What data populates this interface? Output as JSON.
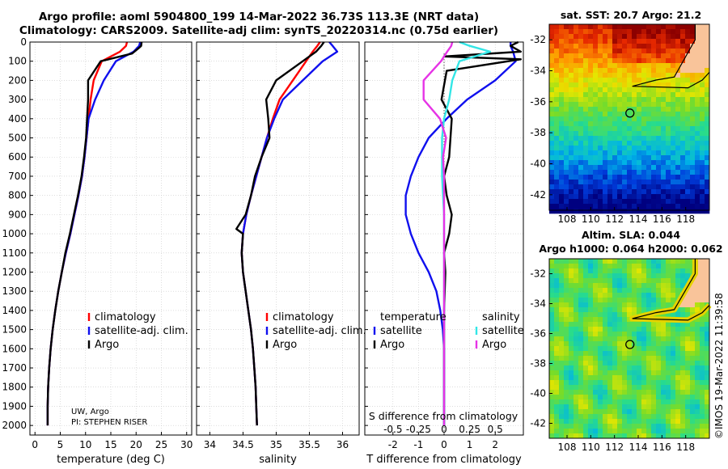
{
  "header": {
    "title_line1": "Argo profile: aoml 5904800_199 14-Mar-2022 36.73S 113.3E (NRT data)",
    "title_line2": "Climatology: CARS2009. Satellite-adj clim: synTS_20220314.nc (0.75d earlier)"
  },
  "colors": {
    "climatology": "#ff0000",
    "satellite": "#1010ee",
    "argo": "#000000",
    "sat_T": "#33e6e6",
    "argo_S": "#e633e6"
  },
  "depth_axis": {
    "ticks": [
      "0",
      "100",
      "200",
      "300",
      "400",
      "500",
      "600",
      "700",
      "800",
      "900",
      "1000",
      "1100",
      "1200",
      "1300",
      "1400",
      "1500",
      "1600",
      "1700",
      "1800",
      "1900",
      "2000"
    ],
    "ylim": [
      0,
      2050
    ]
  },
  "chart_data": [
    {
      "type": "line",
      "id": "temperature",
      "xlabel": "temperature (deg C)",
      "xlim": [
        -1,
        31
      ],
      "xticks": [
        "0",
        "5",
        "10",
        "15",
        "20",
        "25",
        "30"
      ],
      "legend": {
        "climatology": "climatology",
        "satellite": "satellite-adj. clim.",
        "argo": "Argo"
      },
      "note": [
        "UW, Argo",
        "PI: STEPHEN RISER"
      ],
      "series": [
        {
          "name": "climatology",
          "color": "#ff0000",
          "x": [
            18.2,
            18.0,
            16.8,
            13.2,
            11.6,
            11.0,
            10.6,
            10.2,
            9.8,
            9.3,
            8.6,
            7.8,
            7.0,
            6.1,
            5.3,
            4.6,
            4.0,
            3.5,
            3.1,
            2.8,
            2.6,
            2.5,
            2.5
          ],
          "depth": [
            0,
            20,
            50,
            100,
            200,
            300,
            400,
            500,
            600,
            700,
            800,
            900,
            1000,
            1100,
            1200,
            1300,
            1400,
            1500,
            1600,
            1700,
            1800,
            1900,
            2000
          ]
        },
        {
          "name": "satellite-adj. clim.",
          "color": "#1010ee",
          "x": [
            20.8,
            20.6,
            19.5,
            16.0,
            13.6,
            11.9,
            10.6,
            10.2,
            9.8,
            9.3,
            8.6,
            7.8,
            7.0,
            6.1,
            5.3,
            4.6,
            4.0,
            3.5,
            3.1,
            2.8,
            2.6,
            2.5,
            2.5
          ],
          "depth": [
            0,
            20,
            50,
            100,
            200,
            300,
            400,
            500,
            600,
            700,
            800,
            900,
            1000,
            1100,
            1200,
            1300,
            1400,
            1500,
            1600,
            1700,
            1800,
            1900,
            2000
          ]
        },
        {
          "name": "Argo",
          "color": "#000000",
          "x": [
            21.1,
            21.0,
            20.6,
            19.2,
            13.0,
            10.5,
            10.5,
            10.1,
            9.7,
            9.2,
            8.5,
            7.7,
            6.9,
            6.0,
            5.3,
            4.6,
            4.0,
            3.5,
            3.1,
            2.8,
            2.6,
            2.5,
            2.5
          ],
          "depth": [
            0,
            20,
            30,
            60,
            100,
            200,
            300,
            500,
            600,
            700,
            800,
            900,
            1000,
            1100,
            1200,
            1300,
            1400,
            1500,
            1600,
            1700,
            1800,
            1900,
            2000
          ]
        }
      ]
    },
    {
      "type": "line",
      "id": "salinity",
      "xlabel": "salinity",
      "xlim": [
        33.8,
        36.25
      ],
      "xticks": [
        "34",
        "34.5",
        "35",
        "35.5",
        "36"
      ],
      "legend": {
        "climatology": "climatology",
        "satellite": "satellite-adj. clim.",
        "argo": "Argo"
      },
      "series": [
        {
          "name": "climatology",
          "color": "#ff0000",
          "x": [
            35.66,
            35.62,
            35.55,
            35.45,
            35.25,
            35.05,
            34.95,
            34.86,
            34.78,
            34.7,
            34.62,
            34.55,
            34.5,
            34.48,
            34.5,
            34.54,
            34.58,
            34.62,
            34.65,
            34.67,
            34.69,
            34.7,
            34.71
          ],
          "depth": [
            0,
            20,
            50,
            100,
            200,
            300,
            400,
            500,
            600,
            700,
            800,
            900,
            1000,
            1100,
            1200,
            1300,
            1400,
            1500,
            1600,
            1700,
            1800,
            1900,
            2000
          ]
        },
        {
          "name": "satellite-adj. clim.",
          "color": "#1010ee",
          "x": [
            35.8,
            35.85,
            35.92,
            35.7,
            35.4,
            35.1,
            34.97,
            34.86,
            34.78,
            34.7,
            34.62,
            34.55,
            34.5,
            34.48,
            34.5,
            34.54,
            34.58,
            34.62,
            34.65,
            34.67,
            34.69,
            34.7,
            34.71
          ],
          "depth": [
            0,
            20,
            50,
            100,
            200,
            300,
            400,
            500,
            600,
            700,
            800,
            900,
            1000,
            1100,
            1200,
            1300,
            1400,
            1500,
            1600,
            1700,
            1800,
            1900,
            2000
          ]
        },
        {
          "name": "Argo",
          "color": "#000000",
          "x": [
            35.72,
            35.68,
            35.6,
            35.4,
            35.0,
            34.85,
            34.88,
            34.9,
            34.78,
            34.68,
            34.62,
            34.54,
            34.4,
            34.5,
            34.48,
            34.5,
            34.54,
            34.58,
            34.62,
            34.65,
            34.67,
            34.69,
            34.7,
            34.71
          ],
          "depth": [
            0,
            20,
            50,
            100,
            200,
            300,
            400,
            500,
            600,
            700,
            800,
            900,
            975,
            1000,
            1100,
            1200,
            1300,
            1400,
            1500,
            1600,
            1700,
            1800,
            1900,
            2000
          ]
        }
      ]
    },
    {
      "type": "line",
      "id": "difference",
      "xlabel": "T difference from climatology",
      "xlim": [
        -3.1,
        3.1
      ],
      "xticks": [
        "-2",
        "-1",
        "0",
        "1",
        "2"
      ],
      "top_label": "S difference from climatology",
      "top_ticks": [
        "-0.5",
        "-0.25",
        "0",
        "0.25",
        "0.5"
      ],
      "legend": {
        "temperature": "temperature",
        "salinity": "salinity",
        "sat_T": "satellite",
        "argo_T": "Argo",
        "sat_S": "satellite",
        "argo_S": "Argo"
      },
      "series": [
        {
          "name": "satellite T",
          "color": "#1010ee",
          "x": [
            2.6,
            2.6,
            2.7,
            2.8,
            2.0,
            0.9,
            0.1,
            -0.6,
            -1.0,
            -1.3,
            -1.5,
            -1.5,
            -1.3,
            -1.0,
            -0.6,
            -0.3,
            -0.15,
            -0.05,
            0.0,
            0.0,
            0.0,
            0.0,
            0.0
          ],
          "depth": [
            0,
            20,
            50,
            100,
            200,
            300,
            400,
            500,
            600,
            700,
            800,
            900,
            1000,
            1100,
            1200,
            1300,
            1400,
            1500,
            1600,
            1700,
            1800,
            1900,
            2000
          ]
        },
        {
          "name": "Argo T",
          "color": "#000000",
          "x": [
            2.9,
            2.6,
            3.0,
            0.0,
            3.0,
            0.1,
            -0.1,
            0.3,
            0.2,
            0.0,
            0.1,
            0.3,
            0.2,
            0.0,
            0.05,
            0.0,
            0.0,
            0.0,
            0.0,
            0.0
          ],
          "depth": [
            0,
            20,
            50,
            75,
            90,
            150,
            300,
            400,
            600,
            700,
            800,
            900,
            1000,
            1100,
            1200,
            1400,
            1600,
            1800,
            1900,
            2000
          ]
        },
        {
          "name": "satellite S",
          "color": "#33e6e6",
          "x": [
            0.15,
            0.25,
            0.45,
            0.15,
            0.08,
            0.05,
            0.0,
            -0.02,
            -0.02,
            -0.02,
            -0.01,
            0.0,
            0.0,
            0.0,
            0.0,
            0.0,
            0.0
          ],
          "depth": [
            0,
            20,
            50,
            100,
            200,
            300,
            400,
            500,
            600,
            700,
            800,
            900,
            1000,
            1200,
            1500,
            1800,
            2000
          ]
        },
        {
          "name": "Argo S",
          "color": "#e633e6",
          "x": [
            0.08,
            0.07,
            0.03,
            -0.03,
            -0.2,
            -0.2,
            -0.04,
            0.02,
            -0.01,
            0.0,
            0.0,
            0.0,
            0.0,
            0.0,
            0.0,
            0.0
          ],
          "depth": [
            0,
            20,
            50,
            100,
            200,
            300,
            400,
            500,
            600,
            700,
            800,
            900,
            1000,
            1300,
            1600,
            2000
          ]
        }
      ]
    }
  ],
  "maps": {
    "sst": {
      "title": "sat. SST: 20.7 Argo: 21.2",
      "yticks": [
        "-32",
        "-34",
        "-36",
        "-38",
        "-40",
        "-42"
      ],
      "xticks": [
        "108",
        "110",
        "112",
        "114",
        "116",
        "118"
      ],
      "argo_lon": 113.3,
      "argo_lat": -36.73
    },
    "sla": {
      "title_line1": "Altim. SLA: 0.044",
      "title_line2": "Argo h1000: 0.064 h2000: 0.062",
      "yticks": [
        "-32",
        "-34",
        "-36",
        "-38",
        "-40",
        "-42"
      ],
      "xticks": [
        "108",
        "110",
        "112",
        "114",
        "116",
        "118"
      ],
      "argo_lon": 113.3,
      "argo_lat": -36.73
    }
  },
  "credit": "©IMOS 19-Mar-2022 11:39:58"
}
